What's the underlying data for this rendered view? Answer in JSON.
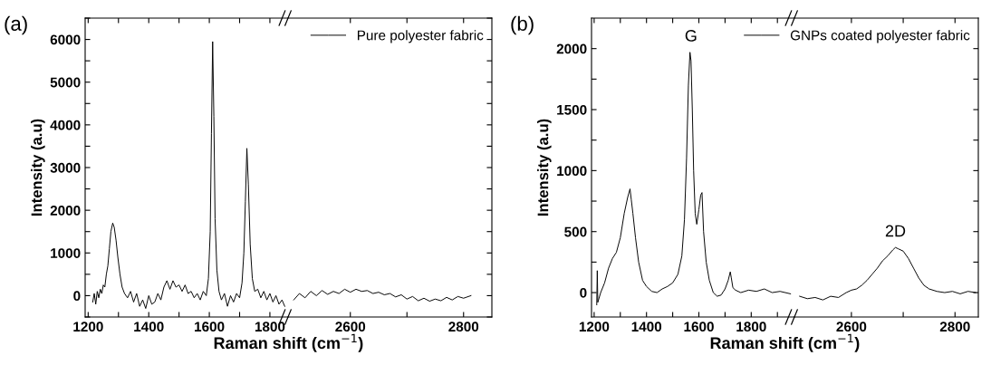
{
  "chart_data": [
    {
      "type": "line",
      "title": "(a)",
      "xlabel": "Raman shift (cm$^{−1}$)",
      "ylabel": "Intensity (a.u)",
      "legend": "top right",
      "xlim": [
        1190,
        1860
      ],
      "xticks": [
        1200,
        {
          "value": 1300,
          "label": null
        },
        1400,
        {
          "value": 1500,
          "label": null
        },
        1600,
        {
          "value": 1700,
          "label": null
        },
        1800
      ],
      "ylim": [
        -500,
        6500
      ],
      "yticks": [
        {
          "value": -500,
          "label": null
        },
        0,
        {
          "value": 500,
          "label": null
        },
        1000,
        {
          "value": 1500,
          "label": null
        },
        2000,
        {
          "value": 2500,
          "label": null
        },
        3000,
        {
          "value": 3500,
          "label": null
        },
        4000,
        {
          "value": 4500,
          "label": null
        },
        5000,
        {
          "value": 5500,
          "label": null
        },
        6000,
        {
          "value": 6500,
          "label": null
        }
      ],
      "series": [
        {
          "name": "Pure polyester fabric",
          "color": "#000000",
          "x": [
            1215,
            1220,
            1225,
            1230,
            1235,
            1240,
            1245,
            1250,
            1255,
            1260,
            1265,
            1270,
            1275,
            1281,
            1286,
            1292,
            1298,
            1305,
            1312,
            1320,
            1330,
            1340,
            1350,
            1360,
            1370,
            1380,
            1390,
            1400,
            1410,
            1420,
            1430,
            1440,
            1450,
            1460,
            1470,
            1480,
            1490,
            1500,
            1510,
            1520,
            1530,
            1540,
            1550,
            1560,
            1570,
            1580,
            1590,
            1597,
            1603,
            1607,
            1611,
            1615,
            1619,
            1625,
            1632,
            1640,
            1650,
            1660,
            1670,
            1680,
            1690,
            1700,
            1708,
            1714,
            1719,
            1724,
            1729,
            1735,
            1742,
            1750,
            1760,
            1770,
            1780,
            1790,
            1800,
            1810,
            1820,
            1830,
            1840,
            1849
          ],
          "values": [
            -150,
            50,
            -200,
            100,
            -50,
            150,
            50,
            250,
            200,
            500,
            700,
            1100,
            1500,
            1700,
            1600,
            1300,
            900,
            500,
            200,
            50,
            -50,
            100,
            -150,
            50,
            -250,
            -100,
            -300,
            0,
            -200,
            -150,
            50,
            -100,
            200,
            350,
            150,
            350,
            200,
            250,
            100,
            250,
            50,
            100,
            -50,
            50,
            -100,
            100,
            0,
            400,
            1500,
            3800,
            5950,
            4200,
            1800,
            600,
            100,
            -100,
            50,
            -250,
            0,
            -150,
            50,
            -50,
            300,
            1000,
            2200,
            3450,
            2600,
            1200,
            400,
            100,
            150,
            -50,
            100,
            -100,
            50,
            -150,
            0,
            -200,
            -100,
            -250
          ]
        }
      ]
    },
    {
      "type": "line",
      "tick_labels": "x",
      "xlim": [
        2490,
        2850
      ],
      "xticks": [
        2600,
        {
          "value": 2700,
          "label": null
        },
        2800
      ],
      "ylim": [
        -500,
        6500
      ],
      "yticks": [
        {
          "value": -500,
          "label": null
        },
        0,
        {
          "value": 500,
          "label": null
        },
        1000,
        {
          "value": 1500,
          "label": null
        },
        2000,
        {
          "value": 2500,
          "label": null
        },
        3000,
        {
          "value": 3500,
          "label": null
        },
        4000,
        {
          "value": 4500,
          "label": null
        },
        5000,
        {
          "value": 5500,
          "label": null
        },
        6000,
        {
          "value": 6500,
          "label": null
        }
      ],
      "series": [
        {
          "color": "#000000",
          "x": [
            2500,
            2510,
            2520,
            2530,
            2540,
            2550,
            2560,
            2570,
            2580,
            2590,
            2600,
            2610,
            2620,
            2630,
            2640,
            2650,
            2660,
            2670,
            2680,
            2690,
            2700,
            2710,
            2720,
            2730,
            2740,
            2750,
            2760,
            2770,
            2780,
            2790,
            2800,
            2813
          ],
          "values": [
            -100,
            50,
            -50,
            100,
            0,
            120,
            30,
            100,
            50,
            150,
            80,
            150,
            100,
            120,
            50,
            80,
            20,
            50,
            -30,
            20,
            -80,
            -20,
            -120,
            -60,
            -130,
            -80,
            -120,
            -40,
            -100,
            -20,
            -60,
            0
          ]
        }
      ]
    },
    {
      "type": "line",
      "title": "(b)",
      "xlabel": "Raman shift (cm$^{−1}$)",
      "ylabel": "Intensity (a.u)",
      "legend": "top right",
      "annotations": [
        {
          "text": "G",
          "x": 1570,
          "y": 1970
        }
      ],
      "xlim": [
        1190,
        1965
      ],
      "xticks": [
        1200,
        {
          "value": 1300,
          "label": null
        },
        1400,
        {
          "value": 1500,
          "label": null
        },
        1600,
        {
          "value": 1700,
          "label": null
        },
        1800,
        {
          "value": 1900,
          "label": null
        }
      ],
      "ylim": [
        -200,
        2250
      ],
      "yticks": [
        0,
        {
          "value": 250,
          "label": null
        },
        500,
        {
          "value": 750,
          "label": null
        },
        1000,
        {
          "value": 1250,
          "label": null
        },
        1500,
        {
          "value": 1750,
          "label": null
        },
        2000
      ],
      "series": [
        {
          "name": "GNPs coated polyester fabric",
          "color": "#000000",
          "x": [
            1210,
            1212,
            1214,
            1225,
            1240,
            1255,
            1270,
            1285,
            1300,
            1315,
            1328,
            1337,
            1342,
            1348,
            1358,
            1370,
            1385,
            1400,
            1420,
            1440,
            1460,
            1480,
            1500,
            1520,
            1535,
            1545,
            1553,
            1560,
            1566,
            1570,
            1575,
            1580,
            1586,
            1592,
            1600,
            1607,
            1612,
            1618,
            1628,
            1640,
            1655,
            1670,
            1685,
            1700,
            1712,
            1720,
            1724,
            1730,
            1740,
            1760,
            1790,
            1820,
            1850,
            1880,
            1910,
            1950
          ],
          "values": [
            -100,
            180,
            -80,
            0,
            80,
            200,
            280,
            330,
            450,
            650,
            780,
            850,
            760,
            650,
            450,
            250,
            100,
            50,
            10,
            0,
            30,
            50,
            80,
            150,
            300,
            600,
            1100,
            1700,
            1970,
            1900,
            1500,
            1000,
            650,
            560,
            680,
            800,
            820,
            500,
            250,
            100,
            0,
            -30,
            -20,
            30,
            100,
            170,
            120,
            40,
            20,
            0,
            20,
            10,
            30,
            0,
            10,
            -10
          ]
        }
      ]
    },
    {
      "type": "line",
      "tick_labels": "x",
      "annotations": [
        {
          "text": "2D",
          "x": 2685,
          "y": 370
        }
      ],
      "xlim": [
        2490,
        2845
      ],
      "xticks": [
        2600,
        {
          "value": 2700,
          "label": null
        },
        2800
      ],
      "ylim": [
        -200,
        2250
      ],
      "yticks": [
        0,
        {
          "value": 250,
          "label": null
        },
        500,
        {
          "value": 750,
          "label": null
        },
        1000,
        {
          "value": 1250,
          "label": null
        },
        1500,
        {
          "value": 1750,
          "label": null
        },
        2000
      ],
      "series": [
        {
          "color": "#000000",
          "x": [
            2500,
            2515,
            2530,
            2545,
            2560,
            2575,
            2590,
            2600,
            2610,
            2620,
            2630,
            2640,
            2650,
            2660,
            2670,
            2680,
            2685,
            2690,
            2700,
            2710,
            2720,
            2730,
            2740,
            2750,
            2765,
            2780,
            2795,
            2810,
            2825,
            2840
          ],
          "values": [
            -30,
            -50,
            -40,
            -60,
            -30,
            -40,
            0,
            20,
            30,
            60,
            100,
            150,
            200,
            260,
            300,
            350,
            370,
            360,
            340,
            280,
            200,
            120,
            60,
            30,
            10,
            0,
            10,
            -10,
            10,
            0
          ]
        }
      ]
    }
  ]
}
